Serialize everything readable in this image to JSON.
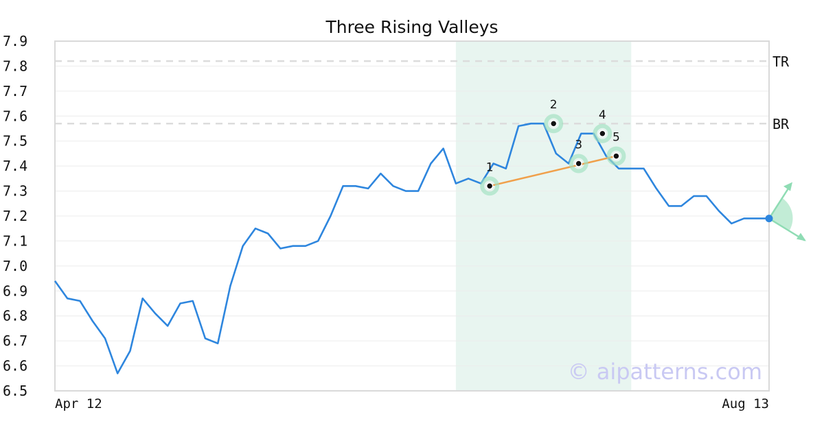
{
  "chart_data": {
    "type": "line",
    "title": "Three Rising Valleys",
    "xlabel": "",
    "ylabel": "",
    "ylim": [
      6.5,
      7.9
    ],
    "yticks": [
      "6.5",
      "6.6",
      "6.7",
      "6.8",
      "6.9",
      "7.0",
      "7.1",
      "7.2",
      "7.3",
      "7.4",
      "7.5",
      "7.6",
      "7.7",
      "7.8",
      "7.9"
    ],
    "x_tick_labels": [
      "Apr 12",
      "Aug 13"
    ],
    "grid": true,
    "series": [
      {
        "color": "#2e86de",
        "values": [
          6.94,
          6.87,
          6.86,
          6.78,
          6.71,
          6.57,
          6.66,
          6.87,
          6.81,
          6.76,
          6.85,
          6.86,
          6.71,
          6.69,
          6.92,
          7.08,
          7.15,
          7.13,
          7.07,
          7.08,
          7.08,
          7.1,
          7.2,
          7.32,
          7.32,
          7.31,
          7.37,
          7.32,
          7.3,
          7.3,
          7.41,
          7.47,
          7.33,
          7.35,
          7.33,
          7.41,
          7.39,
          7.56,
          7.57,
          7.57,
          7.45,
          7.41,
          7.53,
          7.53,
          7.44,
          7.39,
          7.39,
          7.39,
          7.31,
          7.24,
          7.24,
          7.28,
          7.28,
          7.22,
          7.17,
          7.19,
          7.19,
          7.19
        ]
      }
    ],
    "highlight_range": {
      "start_index": 32,
      "end_index": 46,
      "color": "#e8f5f0"
    },
    "reference_lines": [
      {
        "label": "TR",
        "value": 7.82
      },
      {
        "label": "BR",
        "value": 7.57
      }
    ],
    "pattern_points": [
      {
        "label": "1",
        "index": 34.7,
        "value": 7.32
      },
      {
        "label": "2",
        "index": 39.8,
        "value": 7.57
      },
      {
        "label": "3",
        "index": 41.8,
        "value": 7.41
      },
      {
        "label": "4",
        "index": 43.7,
        "value": 7.53
      },
      {
        "label": "5",
        "index": 44.8,
        "value": 7.44
      }
    ],
    "trend_line": {
      "from": "1",
      "to": "5",
      "color": "#f0a04b"
    },
    "projection": {
      "index": 57,
      "value": 7.19,
      "color": "#2e86de",
      "arrow_color": "#8fdcb4"
    },
    "watermark": "© aipatterns.com"
  }
}
